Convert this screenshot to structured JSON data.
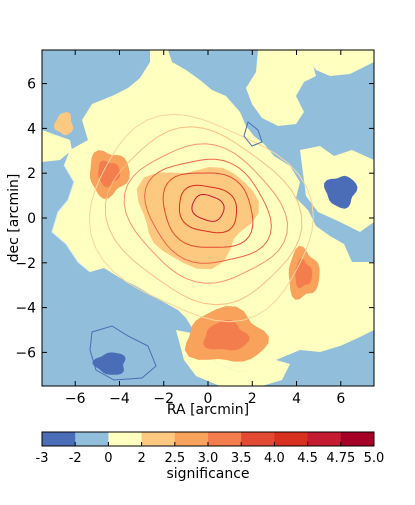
{
  "chart_data": {
    "type": "heatmap",
    "title": "",
    "xlabel": "RA [arcmin]",
    "ylabel": "dec [arcmin]",
    "xlim": [
      -7.5,
      7.5
    ],
    "ylim": [
      -7.5,
      7.5
    ],
    "x_ticks": [
      -6,
      -4,
      -2,
      0,
      2,
      4,
      6
    ],
    "y_ticks": [
      -6,
      -4,
      -2,
      0,
      2,
      4,
      6
    ],
    "x_tick_labels": [
      "−6",
      "−4",
      "−2",
      "0",
      "2",
      "4",
      "6"
    ],
    "y_tick_labels": [
      "−6",
      "−4",
      "−2",
      "0",
      "2",
      "4",
      "6"
    ],
    "grid": false,
    "colorbar": {
      "label": "significance",
      "orientation": "horizontal",
      "placement": "bottom",
      "boundaries": [
        -3,
        -2,
        0,
        2,
        2.5,
        3.0,
        3.5,
        4.0,
        4.5,
        4.75,
        5.0
      ],
      "tick_labels": [
        "-3",
        "-2",
        "0",
        "2",
        "2.5",
        "3.0",
        "3.5",
        "4.0",
        "4.5",
        "4.75",
        "5.0"
      ],
      "colors": [
        "#4b6cb7",
        "#91bfdb",
        "#ffffbf",
        "#fdc87f",
        "#f9a25c",
        "#f47d4d",
        "#e34a33",
        "#d7301f",
        "#c51b31",
        "#a50026"
      ]
    },
    "filled_regions": [
      {
        "name": "central blob",
        "cx": -0.5,
        "cy": 0.2,
        "rx": 2.6,
        "ry": 2.2,
        "level_range": [
          2,
          2.5
        ]
      },
      {
        "name": "west blob",
        "cx": -4.5,
        "cy": 2.0,
        "rx": 0.9,
        "ry": 1.0,
        "level_range": [
          2.5,
          3.0
        ]
      },
      {
        "name": "east blob",
        "cx": 4.3,
        "cy": -2.5,
        "rx": 0.7,
        "ry": 1.1,
        "level_range": [
          2.5,
          3.0
        ]
      },
      {
        "name": "south blob",
        "cx": 0.8,
        "cy": -5.3,
        "rx": 1.8,
        "ry": 1.2,
        "level_range": [
          2.5,
          3.0
        ]
      },
      {
        "name": "north-west spot",
        "cx": -6.5,
        "cy": 4.2,
        "rx": 0.4,
        "ry": 0.5,
        "level_range": [
          2,
          2.5
        ]
      },
      {
        "name": "southwest deficit",
        "cx": -4.4,
        "cy": -6.5,
        "rx": 0.7,
        "ry": 0.5,
        "level_range": [
          -3,
          -2
        ]
      },
      {
        "name": "east deficit",
        "cx": 6.0,
        "cy": 1.2,
        "rx": 0.7,
        "ry": 0.7,
        "level_range": [
          -3,
          -2
        ]
      }
    ],
    "contour_lines": [
      {
        "level": "outer",
        "cx": -0.3,
        "cy": 0.0,
        "rx": 4.8,
        "ry": 4.6
      },
      {
        "level": "",
        "cx": -0.2,
        "cy": 0.1,
        "rx": 4.1,
        "ry": 3.9
      },
      {
        "level": "",
        "cx": -0.1,
        "cy": 0.2,
        "rx": 3.4,
        "ry": 3.1
      },
      {
        "level": "",
        "cx": 0.0,
        "cy": 0.3,
        "rx": 2.7,
        "ry": 2.4
      },
      {
        "level": "",
        "cx": 0.0,
        "cy": 0.35,
        "rx": 2.0,
        "ry": 1.8
      },
      {
        "level": "",
        "cx": 0.0,
        "cy": 0.4,
        "rx": 1.3,
        "ry": 1.1
      },
      {
        "level": "inner",
        "cx": 0.0,
        "cy": 0.45,
        "rx": 0.7,
        "ry": 0.6
      }
    ]
  }
}
